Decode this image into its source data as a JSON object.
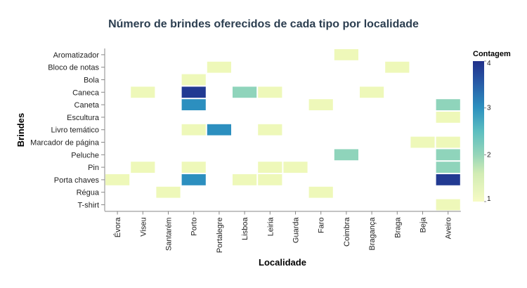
{
  "chart_data": {
    "type": "heatmap",
    "title": "Número de brindes oferecidos de cada tipo por localidade",
    "xlabel": "Localidade",
    "ylabel": "Brindes",
    "x_categories": [
      "Évora",
      "Viseu",
      "Santarém",
      "Porto",
      "Portalegre",
      "Lisboa",
      "Leiria",
      "Guarda",
      "Faro",
      "Coimbra",
      "Bragança",
      "Braga",
      "Beja",
      "Aveiro"
    ],
    "y_categories": [
      "Aromatizador",
      "Bloco de notas",
      "Bola",
      "Caneca",
      "Caneta",
      "Escultura",
      "Livro temático",
      "Marcador de página",
      "Peluche",
      "Pin",
      "Porta chaves",
      "Régua",
      "T-shirt"
    ],
    "cells": [
      {
        "x": "Coimbra",
        "y": "Aromatizador",
        "value": 1
      },
      {
        "x": "Portalegre",
        "y": "Bloco de notas",
        "value": 1
      },
      {
        "x": "Braga",
        "y": "Bloco de notas",
        "value": 1
      },
      {
        "x": "Porto",
        "y": "Bola",
        "value": 1
      },
      {
        "x": "Viseu",
        "y": "Caneca",
        "value": 1
      },
      {
        "x": "Porto",
        "y": "Caneca",
        "value": 4
      },
      {
        "x": "Lisboa",
        "y": "Caneca",
        "value": 2
      },
      {
        "x": "Leiria",
        "y": "Caneca",
        "value": 1
      },
      {
        "x": "Bragança",
        "y": "Caneca",
        "value": 1
      },
      {
        "x": "Porto",
        "y": "Caneta",
        "value": 3
      },
      {
        "x": "Faro",
        "y": "Caneta",
        "value": 1
      },
      {
        "x": "Aveiro",
        "y": "Caneta",
        "value": 2
      },
      {
        "x": "Aveiro",
        "y": "Escultura",
        "value": 1
      },
      {
        "x": "Porto",
        "y": "Livro temático",
        "value": 1
      },
      {
        "x": "Portalegre",
        "y": "Livro temático",
        "value": 3
      },
      {
        "x": "Leiria",
        "y": "Livro temático",
        "value": 1
      },
      {
        "x": "Beja",
        "y": "Marcador de página",
        "value": 1
      },
      {
        "x": "Aveiro",
        "y": "Marcador de página",
        "value": 1
      },
      {
        "x": "Coimbra",
        "y": "Peluche",
        "value": 2
      },
      {
        "x": "Aveiro",
        "y": "Peluche",
        "value": 2
      },
      {
        "x": "Viseu",
        "y": "Pin",
        "value": 1
      },
      {
        "x": "Porto",
        "y": "Pin",
        "value": 1
      },
      {
        "x": "Leiria",
        "y": "Pin",
        "value": 1
      },
      {
        "x": "Guarda",
        "y": "Pin",
        "value": 1
      },
      {
        "x": "Aveiro",
        "y": "Pin",
        "value": 2
      },
      {
        "x": "Évora",
        "y": "Porta chaves",
        "value": 1
      },
      {
        "x": "Porto",
        "y": "Porta chaves",
        "value": 3
      },
      {
        "x": "Lisboa",
        "y": "Porta chaves",
        "value": 1
      },
      {
        "x": "Leiria",
        "y": "Porta chaves",
        "value": 1
      },
      {
        "x": "Aveiro",
        "y": "Porta chaves",
        "value": 4
      },
      {
        "x": "Santarém",
        "y": "Régua",
        "value": 1
      },
      {
        "x": "Faro",
        "y": "Régua",
        "value": 1
      },
      {
        "x": "Aveiro",
        "y": "T-shirt",
        "value": 1
      }
    ],
    "legend": {
      "title": "Contagem",
      "ticks": [
        1,
        2,
        3,
        4
      ],
      "range": [
        1,
        4
      ],
      "placement": "right"
    },
    "color_scale": [
      "#eef8b9",
      "#8fd4bb",
      "#2c8fbf",
      "#223a92"
    ],
    "grid": false
  }
}
